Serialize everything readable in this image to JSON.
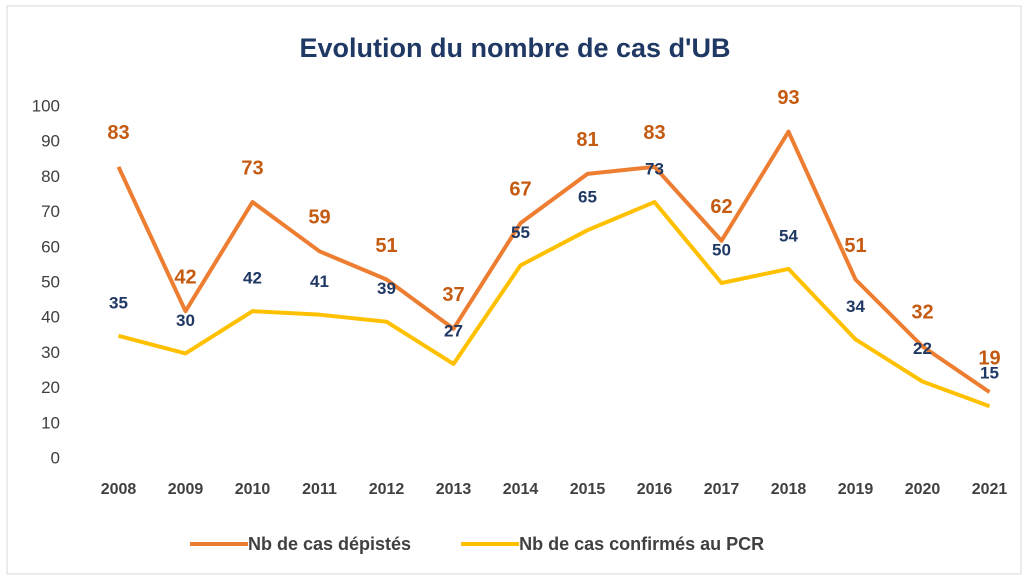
{
  "chart_data": {
    "type": "line",
    "title": "Evolution du nombre de cas d'UB",
    "categories": [
      "2008",
      "2009",
      "2010",
      "2011",
      "2012",
      "2013",
      "2014",
      "2015",
      "2016",
      "2017",
      "2018",
      "2019",
      "2020",
      "2021"
    ],
    "series": [
      {
        "name": "Nb de cas dépistés",
        "color": "#ED7D31",
        "label_color": "#C55A11",
        "values": [
          83,
          42,
          73,
          59,
          51,
          37,
          67,
          81,
          83,
          62,
          93,
          51,
          32,
          19
        ]
      },
      {
        "name": "Nb de cas confirmés au PCR",
        "color": "#FFC000",
        "label_color": "#1F3864",
        "values": [
          35,
          30,
          42,
          41,
          39,
          27,
          55,
          65,
          73,
          50,
          54,
          34,
          22,
          15
        ]
      }
    ],
    "ylim": [
      0,
      100
    ],
    "yticks": [
      0,
      10,
      20,
      30,
      40,
      50,
      60,
      70,
      80,
      90,
      100
    ],
    "grid": false,
    "legend": "bottom"
  }
}
